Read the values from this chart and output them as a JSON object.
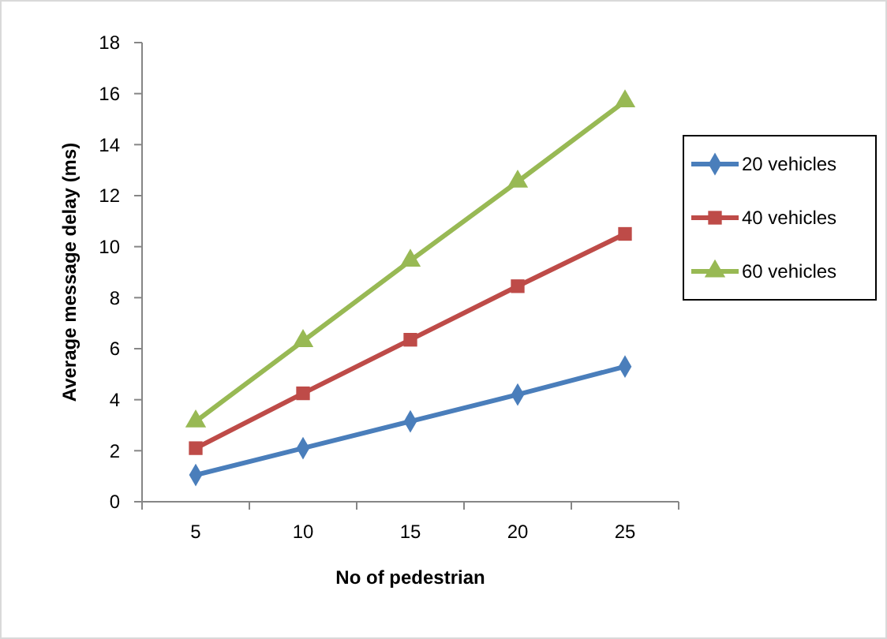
{
  "chart_data": {
    "type": "line",
    "xlabel": "No of pedestrian",
    "ylabel": "Average message delay (ms)",
    "categories": [
      "5",
      "10",
      "15",
      "20",
      "25"
    ],
    "ylim": [
      0,
      18
    ],
    "yticks": [
      0,
      2,
      4,
      6,
      8,
      10,
      12,
      14,
      16,
      18
    ],
    "grid": false,
    "legend": "right",
    "series": [
      {
        "name": "20 vehicles",
        "color": "#4a7ebb",
        "marker": "diamond",
        "values": [
          1.05,
          2.1,
          3.15,
          4.2,
          5.3
        ]
      },
      {
        "name": "40 vehicles",
        "color": "#be4b48",
        "marker": "square",
        "values": [
          2.1,
          4.25,
          6.35,
          8.45,
          10.5
        ]
      },
      {
        "name": "60 vehicles",
        "color": "#98b954",
        "marker": "triangle",
        "values": [
          3.15,
          6.3,
          9.45,
          12.55,
          15.7
        ]
      }
    ]
  }
}
